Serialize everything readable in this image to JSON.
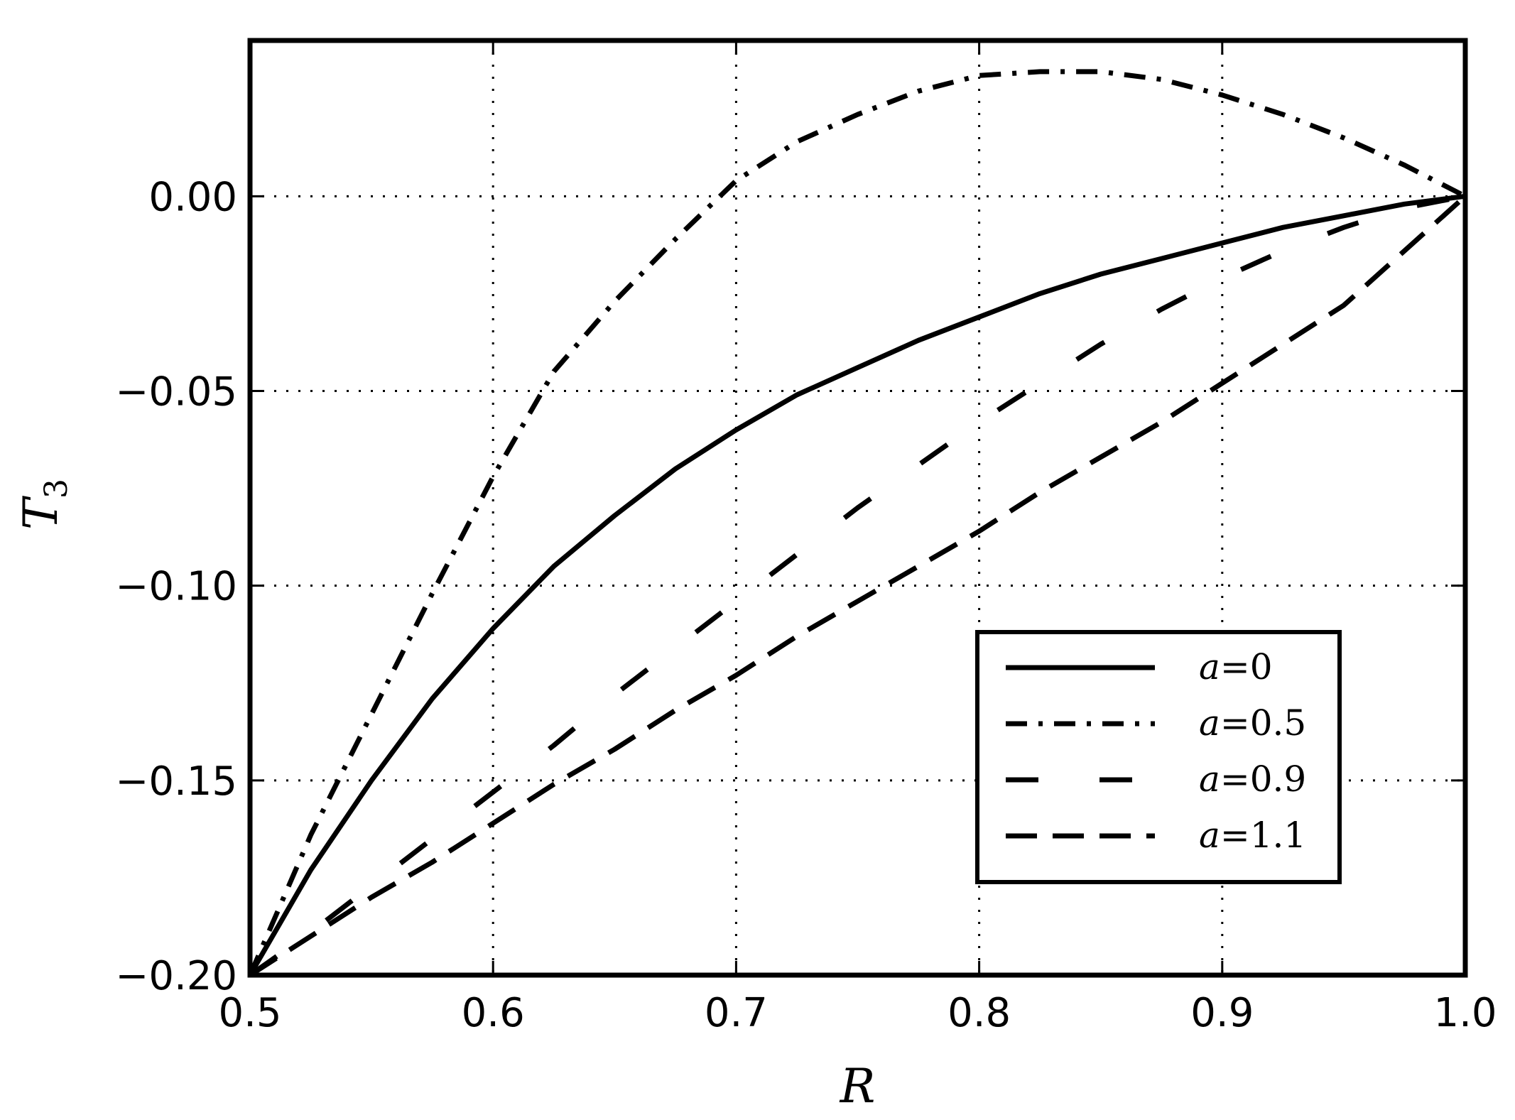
{
  "chart_data": {
    "type": "line",
    "title": "",
    "xlabel": "R",
    "ylabel": "T",
    "ylabel_subscript": "3",
    "xlim": [
      0.5,
      1.0
    ],
    "ylim": [
      -0.2,
      0.04
    ],
    "x_ticks": [
      0.5,
      0.6,
      0.7,
      0.8,
      0.9,
      1.0
    ],
    "x_tick_labels": [
      "0.5",
      "0.6",
      "0.7",
      "0.8",
      "0.9",
      "1.0"
    ],
    "y_ticks": [
      -0.2,
      -0.15,
      -0.1,
      -0.05,
      0.0
    ],
    "y_tick_labels": [
      "−0.20",
      "−0.15",
      "−0.10",
      "−0.05",
      "0.00"
    ],
    "grid": true,
    "legend_position": "lower-right",
    "x": [
      0.5,
      0.525,
      0.55,
      0.575,
      0.6,
      0.625,
      0.65,
      0.675,
      0.7,
      0.725,
      0.75,
      0.775,
      0.8,
      0.825,
      0.85,
      0.875,
      0.9,
      0.925,
      0.95,
      0.975,
      1.0
    ],
    "series": [
      {
        "name": "a=0",
        "legend_var": "a",
        "legend_value": "0",
        "style": "solid",
        "values": [
          -0.2,
          -0.173,
          -0.15,
          -0.129,
          -0.111,
          -0.095,
          -0.082,
          -0.07,
          -0.06,
          -0.051,
          -0.044,
          -0.037,
          -0.031,
          -0.025,
          -0.02,
          -0.016,
          -0.012,
          -0.008,
          -0.005,
          -0.002,
          0.0
        ]
      },
      {
        "name": "a=0.5",
        "legend_var": "a",
        "legend_value": "0.5",
        "style": "dashdot",
        "values": [
          -0.2,
          -0.164,
          -0.133,
          -0.102,
          -0.072,
          -0.045,
          -0.027,
          -0.011,
          0.004,
          0.014,
          0.021,
          0.027,
          0.031,
          0.032,
          0.032,
          0.03,
          0.026,
          0.021,
          0.015,
          0.008,
          0.0
        ]
      },
      {
        "name": "a=0.9",
        "legend_var": "a",
        "legend_value": "0.9",
        "style": "longdash",
        "values": [
          -0.2,
          -0.189,
          -0.177,
          -0.165,
          -0.153,
          -0.141,
          -0.128,
          -0.116,
          -0.104,
          -0.092,
          -0.08,
          -0.069,
          -0.058,
          -0.048,
          -0.038,
          -0.029,
          -0.021,
          -0.014,
          -0.008,
          -0.003,
          0.0
        ]
      },
      {
        "name": "a=1.1",
        "legend_var": "a",
        "legend_value": "1.1",
        "style": "dashed",
        "values": [
          -0.2,
          -0.19,
          -0.18,
          -0.171,
          -0.161,
          -0.151,
          -0.142,
          -0.132,
          -0.123,
          -0.113,
          -0.104,
          -0.095,
          -0.086,
          -0.076,
          -0.067,
          -0.058,
          -0.048,
          -0.038,
          -0.028,
          -0.014,
          0.0
        ]
      }
    ]
  }
}
